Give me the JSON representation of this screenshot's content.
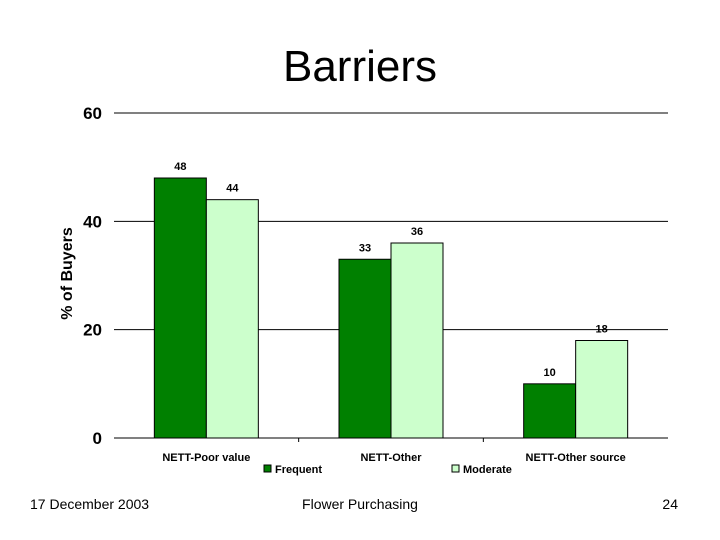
{
  "slide": {
    "title": "Barriers",
    "footer_date": "17 December 2003",
    "footer_center": "Flower Purchasing",
    "page_number": "24"
  },
  "colors": {
    "frequent": "#008000",
    "moderate": "#ccffcc",
    "grid": "#000000"
  },
  "chart_data": {
    "type": "bar",
    "title": "",
    "xlabel": "",
    "ylabel": "% of Buyers",
    "ylim": [
      0,
      60
    ],
    "yticks": [
      0,
      20,
      40,
      60
    ],
    "categories": [
      "NETT-Poor value",
      "NETT-Other",
      "NETT-Other source"
    ],
    "series": [
      {
        "name": "Frequent",
        "values": [
          48,
          33,
          10
        ]
      },
      {
        "name": "Moderate",
        "values": [
          44,
          36,
          18
        ]
      }
    ],
    "grid": true,
    "legend": "bottom"
  }
}
